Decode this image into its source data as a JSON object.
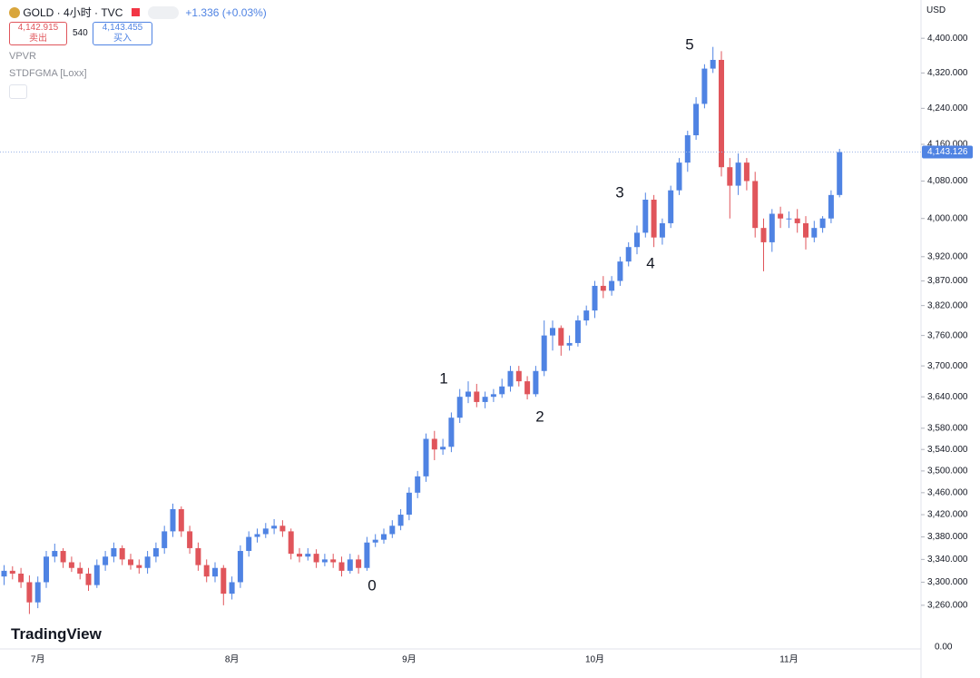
{
  "ui": {
    "symbol": "GOLD · 4小时 · TVC",
    "change": "+1.336 (+0.03%)",
    "sell_price": "4,142.915",
    "sell_label": "卖出",
    "spread": "540",
    "buy_price": "4,143.455",
    "buy_label": "买入",
    "indicators": [
      "VPVR",
      "STDFGMA [Loxx]"
    ],
    "currency": "USD",
    "logo": "TradingView",
    "volume_axis_label": "0.00"
  },
  "chart_data": {
    "type": "candlestick",
    "log_scale": true,
    "grid": false,
    "up_color": "#4f83e3",
    "down_color": "#e0555b",
    "ylim": [
      3224,
      4490
    ],
    "yticks": [
      {
        "value": 3260,
        "label": "3,260.000"
      },
      {
        "value": 3300,
        "label": "3,300.000"
      },
      {
        "value": 3340,
        "label": "3,340.000"
      },
      {
        "value": 3380,
        "label": "3,380.000"
      },
      {
        "value": 3420,
        "label": "3,420.000"
      },
      {
        "value": 3460,
        "label": "3,460.000"
      },
      {
        "value": 3500,
        "label": "3,500.000"
      },
      {
        "value": 3540,
        "label": "3,540.000"
      },
      {
        "value": 3580,
        "label": "3,580.000"
      },
      {
        "value": 3640,
        "label": "3,640.000"
      },
      {
        "value": 3700,
        "label": "3,700.000"
      },
      {
        "value": 3760,
        "label": "3,760.000"
      },
      {
        "value": 3820,
        "label": "3,820.000"
      },
      {
        "value": 3870,
        "label": "3,870.000"
      },
      {
        "value": 3920,
        "label": "3,920.000"
      },
      {
        "value": 4000,
        "label": "4,000.000"
      },
      {
        "value": 4080,
        "label": "4,080.000"
      },
      {
        "value": 4160,
        "label": "4,160.000"
      },
      {
        "value": 4240,
        "label": "4,240.000"
      },
      {
        "value": 4320,
        "label": "4,320.000"
      },
      {
        "value": 4400,
        "label": "4,400.000"
      }
    ],
    "last_price": {
      "value": 4143.126,
      "label": "4,143.126"
    },
    "annotations": [
      "0",
      "1",
      "2",
      "3",
      "4",
      "5"
    ],
    "categories": [
      null,
      null,
      null,
      null,
      "7月",
      null,
      null,
      null,
      null,
      null,
      null,
      null,
      null,
      null,
      null,
      null,
      null,
      null,
      null,
      null,
      null,
      null,
      null,
      null,
      null,
      null,
      null,
      "8月",
      null,
      null,
      null,
      null,
      null,
      null,
      null,
      null,
      null,
      null,
      null,
      null,
      null,
      null,
      null,
      null,
      null,
      null,
      null,
      null,
      "9月",
      null,
      null,
      null,
      null,
      null,
      null,
      null,
      null,
      null,
      null,
      null,
      null,
      null,
      null,
      null,
      null,
      null,
      null,
      null,
      null,
      null,
      "10月",
      null,
      null,
      null,
      null,
      null,
      null,
      null,
      null,
      null,
      null,
      null,
      null,
      null,
      null,
      null,
      null,
      null,
      null,
      null,
      null,
      null,
      null,
      "11月",
      null,
      null,
      null,
      null,
      null,
      null
    ],
    "open": [
      3310,
      3320,
      3315,
      3300,
      3265,
      3300,
      3345,
      3355,
      3335,
      3325,
      3315,
      3295,
      3330,
      3345,
      3360,
      3340,
      3330,
      3325,
      3345,
      3360,
      3390,
      3430,
      3390,
      3360,
      3330,
      3310,
      3325,
      3280,
      3300,
      3355,
      3380,
      3385,
      3395,
      3400,
      3390,
      3350,
      3345,
      3350,
      3335,
      3340,
      3335,
      3320,
      3340,
      3325,
      3370,
      3375,
      3385,
      3400,
      3420,
      3460,
      3490,
      3560,
      3540,
      3545,
      3600,
      3640,
      3650,
      3630,
      3640,
      3645,
      3660,
      3690,
      3670,
      3645,
      3690,
      3760,
      3775,
      3740,
      3745,
      3790,
      3810,
      3860,
      3850,
      3870,
      3910,
      3940,
      3970,
      4040,
      3960,
      3990,
      4060,
      4120,
      4180,
      4250,
      4330,
      4350,
      4110,
      4070,
      4120,
      4080,
      3980,
      3950,
      4010,
      4000,
      4000,
      3990,
      3960,
      3980,
      4000,
      4050
    ],
    "high": [
      3330,
      3328,
      3325,
      3312,
      3310,
      3355,
      3368,
      3360,
      3345,
      3335,
      3325,
      3340,
      3355,
      3370,
      3365,
      3350,
      3340,
      3355,
      3370,
      3400,
      3440,
      3435,
      3400,
      3370,
      3340,
      3335,
      3330,
      3310,
      3365,
      3390,
      3395,
      3405,
      3412,
      3410,
      3395,
      3360,
      3360,
      3358,
      3350,
      3350,
      3345,
      3350,
      3348,
      3380,
      3385,
      3395,
      3410,
      3430,
      3470,
      3500,
      3570,
      3575,
      3560,
      3610,
      3655,
      3670,
      3665,
      3650,
      3655,
      3675,
      3700,
      3700,
      3680,
      3700,
      3790,
      3790,
      3780,
      3760,
      3800,
      3820,
      3870,
      3880,
      3880,
      3920,
      3950,
      3985,
      4055,
      4050,
      4000,
      4070,
      4130,
      4190,
      4265,
      4340,
      4380,
      4370,
      4130,
      4140,
      4130,
      4100,
      4000,
      4020,
      4025,
      4015,
      4020,
      4005,
      3995,
      4005,
      4060,
      4150
    ],
    "low": [
      3295,
      3305,
      3290,
      3245,
      3255,
      3290,
      3335,
      3325,
      3318,
      3305,
      3285,
      3290,
      3320,
      3335,
      3330,
      3322,
      3315,
      3315,
      3335,
      3350,
      3380,
      3380,
      3350,
      3320,
      3300,
      3300,
      3260,
      3270,
      3290,
      3345,
      3370,
      3378,
      3385,
      3380,
      3340,
      3335,
      3338,
      3325,
      3328,
      3325,
      3310,
      3315,
      3315,
      3320,
      3362,
      3368,
      3378,
      3392,
      3410,
      3450,
      3480,
      3520,
      3530,
      3535,
      3590,
      3628,
      3620,
      3618,
      3630,
      3638,
      3650,
      3660,
      3635,
      3640,
      3680,
      3730,
      3720,
      3730,
      3738,
      3780,
      3795,
      3835,
      3840,
      3860,
      3900,
      3925,
      3960,
      3940,
      3945,
      3980,
      4050,
      4100,
      4170,
      4240,
      4320,
      4090,
      4000,
      4050,
      4060,
      3960,
      3890,
      3930,
      3980,
      3980,
      3970,
      3935,
      3950,
      3970,
      3990,
      4045
    ],
    "close": [
      3320,
      3315,
      3300,
      3265,
      3300,
      3345,
      3355,
      3335,
      3325,
      3315,
      3295,
      3330,
      3345,
      3360,
      3340,
      3330,
      3325,
      3345,
      3360,
      3390,
      3430,
      3390,
      3360,
      3330,
      3310,
      3325,
      3280,
      3300,
      3355,
      3380,
      3385,
      3395,
      3400,
      3390,
      3350,
      3345,
      3350,
      3335,
      3340,
      3335,
      3320,
      3340,
      3325,
      3370,
      3375,
      3385,
      3400,
      3420,
      3460,
      3490,
      3560,
      3540,
      3545,
      3600,
      3640,
      3650,
      3630,
      3640,
      3645,
      3660,
      3690,
      3670,
      3645,
      3690,
      3760,
      3775,
      3740,
      3745,
      3790,
      3810,
      3860,
      3850,
      3870,
      3910,
      3940,
      3970,
      4040,
      3960,
      3990,
      4060,
      4120,
      4180,
      4250,
      4330,
      4350,
      4110,
      4070,
      4120,
      4080,
      3980,
      3950,
      4010,
      4000,
      4000,
      3990,
      3960,
      3980,
      4000,
      4050,
      4143.126
    ]
  }
}
